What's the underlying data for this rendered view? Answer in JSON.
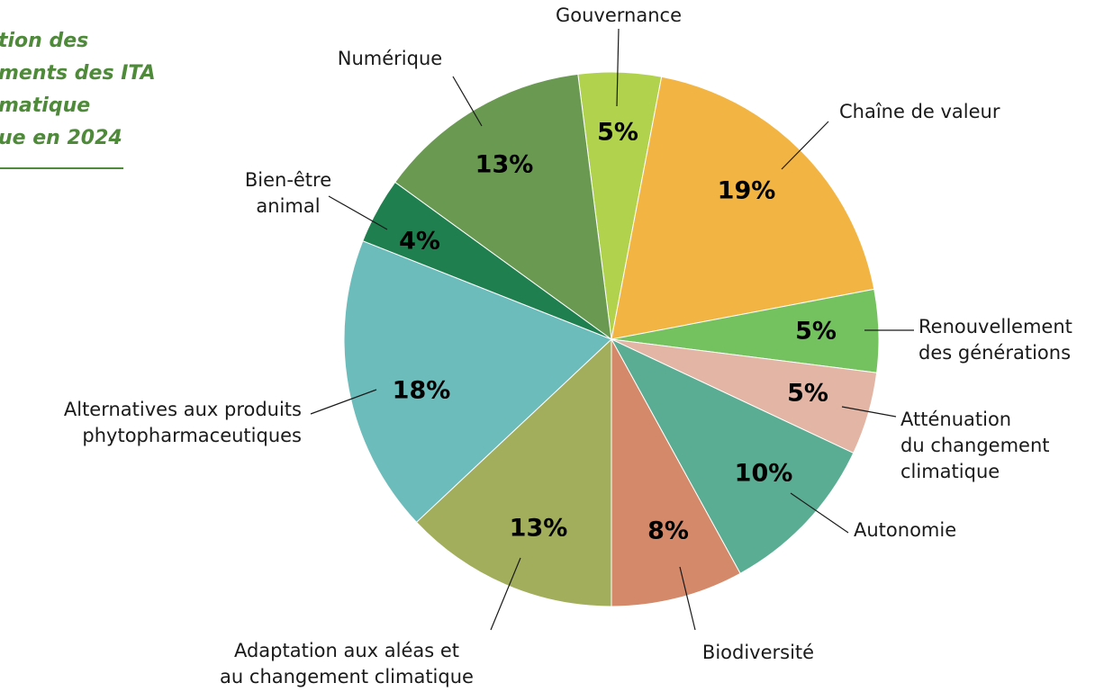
{
  "chart_data": {
    "type": "pie",
    "title_lines": [
      "tion des",
      "ments des ITA",
      "matique",
      "ue en 2024"
    ],
    "categories": [
      "Gouvernance",
      "Chaîne de valeur",
      "Renouvellement\ndes générations",
      "Atténuation\ndu changement\nclimatique",
      "Autonomie",
      "Biodiversité",
      "Adaptation aux aléas et\nau changement climatique",
      "Alternatives aux produits\nphytopharmaceutiques",
      "Bien-être\nanimal",
      "Numérique"
    ],
    "values": [
      5,
      19,
      5,
      5,
      10,
      8,
      13,
      18,
      4,
      13
    ],
    "value_labels": [
      "5%",
      "19%",
      "5%",
      "5%",
      "10%",
      "8%",
      "13%",
      "18%",
      "4%",
      "13%"
    ],
    "colors": [
      "#b0d24c",
      "#f2b544",
      "#74c160",
      "#e2b5a5",
      "#5aad92",
      "#d4896a",
      "#a3ae5c",
      "#6dbcbc",
      "#1f7f4f",
      "#6a9a52"
    ]
  }
}
